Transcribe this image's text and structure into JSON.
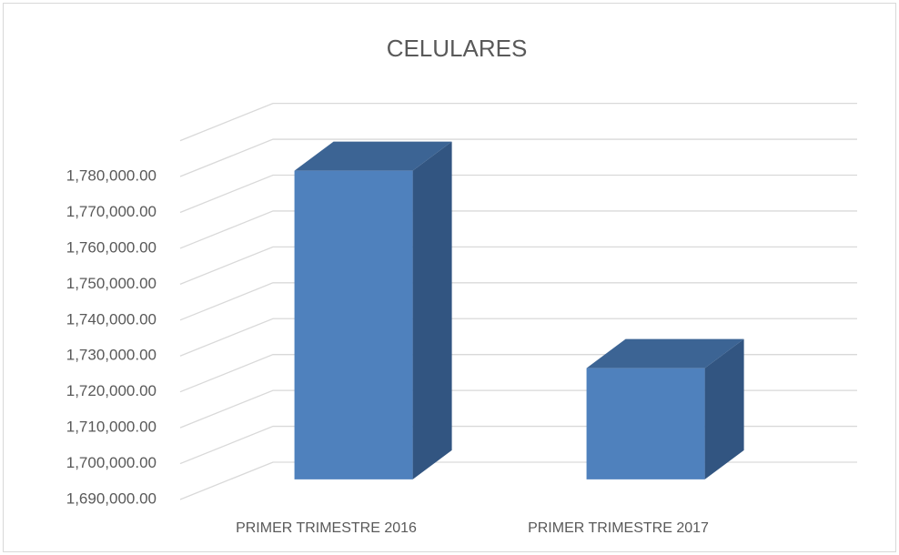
{
  "chart_data": {
    "type": "bar3d",
    "title": "CELULARES",
    "categories": [
      "PRIMER TRIMESTRE 2016",
      "PRIMER TRIMESTRE 2017"
    ],
    "values": [
      1776000,
      1721000
    ],
    "color": "#4f81bd",
    "ylim": [
      1690000,
      1790000
    ],
    "yticks": [
      {
        "value": 1690000,
        "label": "1,690,000.00"
      },
      {
        "value": 1700000,
        "label": "1,700,000.00"
      },
      {
        "value": 1710000,
        "label": "1,710,000.00"
      },
      {
        "value": 1720000,
        "label": "1,720,000.00"
      },
      {
        "value": 1730000,
        "label": "1,730,000.00"
      },
      {
        "value": 1740000,
        "label": "1,740,000.00"
      },
      {
        "value": 1750000,
        "label": "1,750,000.00"
      },
      {
        "value": 1760000,
        "label": "1,760,000.00"
      },
      {
        "value": 1770000,
        "label": "1,770,000.00"
      },
      {
        "value": 1780000,
        "label": "1,780,000.00"
      }
    ],
    "grid": true
  }
}
